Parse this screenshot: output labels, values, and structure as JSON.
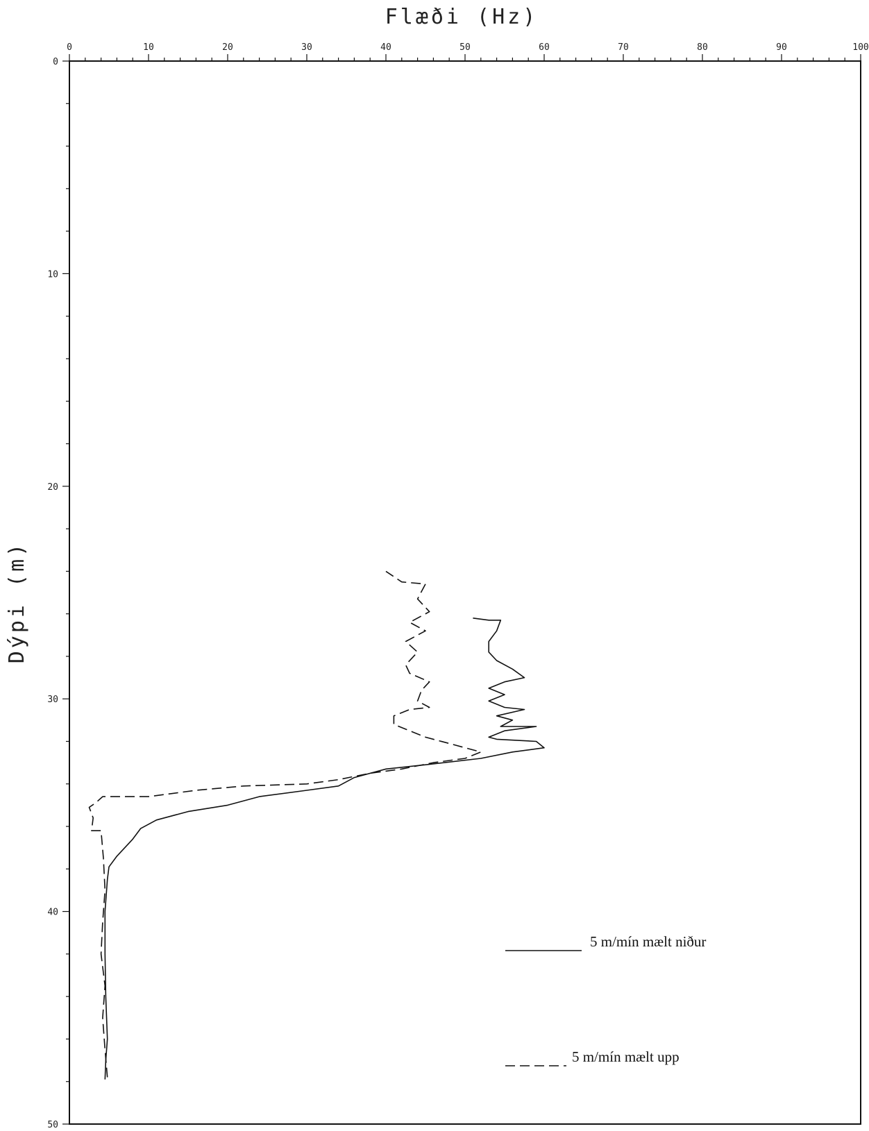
{
  "chart_data": {
    "type": "line",
    "title": "",
    "xlabel": "Flæði (Hz)",
    "ylabel": "Dýpi (m)",
    "xlim": [
      0,
      100
    ],
    "ylim": [
      0,
      50
    ],
    "y_inverted": true,
    "x_axis_position": "top",
    "x_ticks": [
      0,
      10,
      20,
      30,
      40,
      50,
      60,
      70,
      80,
      90,
      100
    ],
    "y_ticks": [
      0,
      10,
      20,
      30,
      40,
      50
    ],
    "grid": false,
    "legend_position": "bottom-right",
    "series": [
      {
        "name": "5 m/mín mælt niður",
        "style": "solid",
        "color": "#111111",
        "points": [
          [
            51.0,
            26.2
          ],
          [
            53.0,
            26.3
          ],
          [
            54.5,
            26.3
          ],
          [
            54.0,
            26.8
          ],
          [
            53.0,
            27.3
          ],
          [
            53.0,
            27.8
          ],
          [
            54.0,
            28.2
          ],
          [
            56.0,
            28.6
          ],
          [
            57.5,
            29.0
          ],
          [
            55.0,
            29.2
          ],
          [
            53.0,
            29.5
          ],
          [
            55.0,
            29.8
          ],
          [
            53.0,
            30.1
          ],
          [
            55.0,
            30.4
          ],
          [
            57.5,
            30.5
          ],
          [
            54.0,
            30.8
          ],
          [
            56.0,
            31.0
          ],
          [
            54.5,
            31.3
          ],
          [
            59.0,
            31.3
          ],
          [
            55.0,
            31.5
          ],
          [
            53.0,
            31.8
          ],
          [
            54.0,
            31.9
          ],
          [
            59.0,
            32.0
          ],
          [
            60.0,
            32.3
          ],
          [
            56.0,
            32.5
          ],
          [
            52.0,
            32.8
          ],
          [
            45.0,
            33.1
          ],
          [
            40.0,
            33.3
          ],
          [
            36.0,
            33.7
          ],
          [
            34.0,
            34.1
          ],
          [
            30.0,
            34.3
          ],
          [
            24.0,
            34.6
          ],
          [
            20.0,
            35.0
          ],
          [
            15.0,
            35.3
          ],
          [
            11.0,
            35.7
          ],
          [
            9.0,
            36.1
          ],
          [
            8.0,
            36.6
          ],
          [
            7.0,
            37.0
          ],
          [
            6.0,
            37.4
          ],
          [
            5.0,
            37.9
          ],
          [
            4.8,
            38.5
          ],
          [
            4.5,
            40.0
          ],
          [
            4.5,
            42.0
          ],
          [
            4.6,
            44.0
          ],
          [
            4.8,
            46.0
          ],
          [
            4.6,
            47.0
          ],
          [
            4.5,
            47.9
          ]
        ]
      },
      {
        "name": "5 m/mín mælt upp",
        "style": "dashed",
        "color": "#111111",
        "points": [
          [
            4.8,
            47.8
          ],
          [
            4.5,
            46.5
          ],
          [
            4.2,
            45.0
          ],
          [
            4.5,
            43.5
          ],
          [
            4.0,
            42.0
          ],
          [
            4.2,
            40.5
          ],
          [
            4.5,
            39.0
          ],
          [
            4.3,
            37.5
          ],
          [
            4.0,
            36.2
          ],
          [
            2.8,
            36.2
          ],
          [
            3.0,
            35.6
          ],
          [
            2.5,
            35.1
          ],
          [
            3.3,
            34.9
          ],
          [
            4.2,
            34.6
          ],
          [
            10.0,
            34.6
          ],
          [
            16.0,
            34.3
          ],
          [
            22.0,
            34.1
          ],
          [
            30.0,
            34.0
          ],
          [
            34.0,
            33.8
          ],
          [
            38.0,
            33.5
          ],
          [
            42.0,
            33.3
          ],
          [
            46.0,
            33.0
          ],
          [
            50.0,
            32.8
          ],
          [
            52.0,
            32.5
          ],
          [
            48.0,
            32.1
          ],
          [
            45.0,
            31.8
          ],
          [
            43.0,
            31.5
          ],
          [
            41.0,
            31.2
          ],
          [
            41.0,
            30.8
          ],
          [
            43.0,
            30.5
          ],
          [
            45.5,
            30.4
          ],
          [
            44.0,
            30.1
          ],
          [
            44.5,
            29.6
          ],
          [
            45.5,
            29.2
          ],
          [
            43.0,
            28.8
          ],
          [
            42.5,
            28.4
          ],
          [
            44.0,
            27.8
          ],
          [
            42.5,
            27.3
          ],
          [
            45.0,
            26.8
          ],
          [
            43.0,
            26.4
          ],
          [
            45.5,
            25.9
          ],
          [
            44.0,
            25.3
          ],
          [
            45.0,
            24.6
          ],
          [
            42.0,
            24.5
          ],
          [
            40.0,
            24.0
          ]
        ]
      }
    ]
  }
}
